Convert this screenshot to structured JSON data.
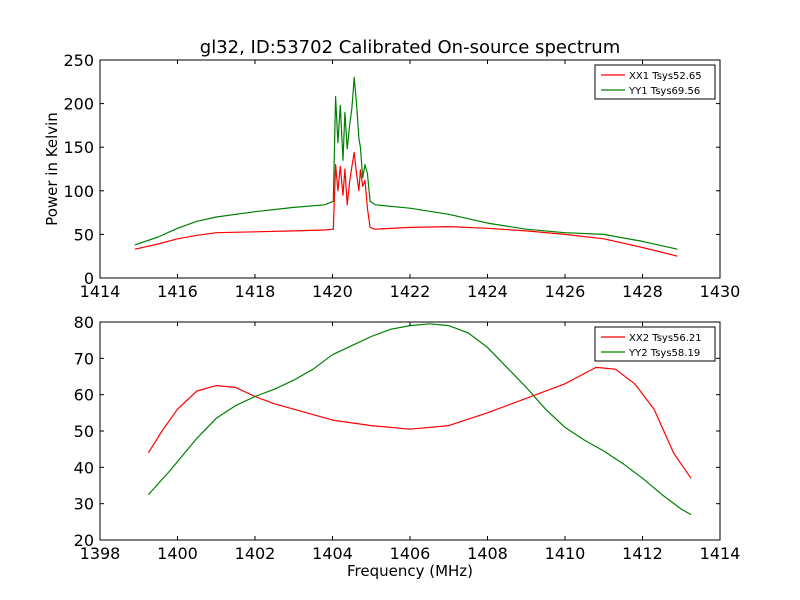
{
  "chart_data": [
    {
      "type": "line",
      "title": "gl32, ID:53702 Calibrated On-source spectrum",
      "xlabel": "",
      "ylabel": "Power in Kelvin",
      "xlim": [
        1414,
        1430
      ],
      "ylim": [
        0,
        250
      ],
      "xticks": [
        1414,
        1416,
        1418,
        1420,
        1422,
        1424,
        1426,
        1428,
        1430
      ],
      "yticks": [
        0,
        50,
        100,
        150,
        200,
        250
      ],
      "grid": false,
      "legend_position": "top-right",
      "series": [
        {
          "name": "XX1 Tsys52.65",
          "color": "#ff0000",
          "points": [
            [
              1414.9,
              33
            ],
            [
              1415.5,
              39
            ],
            [
              1416,
              45
            ],
            [
              1416.5,
              49
            ],
            [
              1417,
              52
            ],
            [
              1418,
              53
            ],
            [
              1419,
              54
            ],
            [
              1419.8,
              55
            ],
            [
              1420.02,
              56
            ],
            [
              1420.08,
              130
            ],
            [
              1420.14,
              100
            ],
            [
              1420.2,
              128
            ],
            [
              1420.27,
              95
            ],
            [
              1420.32,
              125
            ],
            [
              1420.38,
              84
            ],
            [
              1420.44,
              110
            ],
            [
              1420.5,
              128
            ],
            [
              1420.56,
              144
            ],
            [
              1420.62,
              120
            ],
            [
              1420.68,
              100
            ],
            [
              1420.72,
              124
            ],
            [
              1420.78,
              105
            ],
            [
              1420.84,
              112
            ],
            [
              1420.9,
              80
            ],
            [
              1420.97,
              58
            ],
            [
              1421.1,
              56
            ],
            [
              1422,
              58
            ],
            [
              1423,
              59
            ],
            [
              1424,
              57
            ],
            [
              1425,
              54
            ],
            [
              1426,
              50
            ],
            [
              1427,
              45
            ],
            [
              1428,
              35
            ],
            [
              1428.9,
              25
            ]
          ]
        },
        {
          "name": "YY1 Tsys69.56",
          "color": "#008000",
          "points": [
            [
              1414.9,
              38
            ],
            [
              1415.5,
              47
            ],
            [
              1416,
              57
            ],
            [
              1416.5,
              65
            ],
            [
              1417,
              70
            ],
            [
              1418,
              76
            ],
            [
              1419,
              81
            ],
            [
              1419.8,
              84
            ],
            [
              1420.02,
              88
            ],
            [
              1420.08,
              208
            ],
            [
              1420.14,
              155
            ],
            [
              1420.2,
              198
            ],
            [
              1420.27,
              135
            ],
            [
              1420.32,
              190
            ],
            [
              1420.38,
              148
            ],
            [
              1420.44,
              175
            ],
            [
              1420.5,
              195
            ],
            [
              1420.56,
              230
            ],
            [
              1420.62,
              200
            ],
            [
              1420.68,
              160
            ],
            [
              1420.72,
              150
            ],
            [
              1420.78,
              115
            ],
            [
              1420.84,
              130
            ],
            [
              1420.9,
              120
            ],
            [
              1420.97,
              88
            ],
            [
              1421.1,
              84
            ],
            [
              1422,
              80
            ],
            [
              1423,
              73
            ],
            [
              1424,
              63
            ],
            [
              1425,
              56
            ],
            [
              1426,
              52
            ],
            [
              1427,
              50
            ],
            [
              1428,
              42
            ],
            [
              1428.9,
              33
            ]
          ]
        }
      ]
    },
    {
      "type": "line",
      "title": "",
      "xlabel": "Frequency (MHz)",
      "ylabel": "",
      "xlim": [
        1398,
        1414
      ],
      "ylim": [
        20,
        80
      ],
      "xticks": [
        1398,
        1400,
        1402,
        1404,
        1406,
        1408,
        1410,
        1412,
        1414
      ],
      "yticks": [
        20,
        30,
        40,
        50,
        60,
        70,
        80
      ],
      "grid": false,
      "legend_position": "top-right",
      "series": [
        {
          "name": "XX2 Tsys56.21",
          "color": "#ff0000",
          "points": [
            [
              1399.25,
              44
            ],
            [
              1399.6,
              50
            ],
            [
              1400,
              56
            ],
            [
              1400.5,
              61
            ],
            [
              1401,
              62.5
            ],
            [
              1401.5,
              62
            ],
            [
              1402,
              59.5
            ],
            [
              1402.5,
              57.5
            ],
            [
              1403,
              56
            ],
            [
              1404,
              53
            ],
            [
              1405,
              51.5
            ],
            [
              1406,
              50.5
            ],
            [
              1407,
              51.5
            ],
            [
              1408,
              55
            ],
            [
              1409,
              59
            ],
            [
              1410,
              63
            ],
            [
              1410.8,
              67.5
            ],
            [
              1411.3,
              67
            ],
            [
              1411.8,
              63
            ],
            [
              1412.3,
              56
            ],
            [
              1412.8,
              44
            ],
            [
              1413.25,
              37
            ]
          ]
        },
        {
          "name": "YY2 Tsys58.19",
          "color": "#008000",
          "points": [
            [
              1399.25,
              32.5
            ],
            [
              1399.8,
              39
            ],
            [
              1400.5,
              48
            ],
            [
              1401,
              53.5
            ],
            [
              1401.5,
              57
            ],
            [
              1402,
              59.5
            ],
            [
              1402.5,
              61.5
            ],
            [
              1403,
              64
            ],
            [
              1403.5,
              67
            ],
            [
              1404,
              71
            ],
            [
              1404.5,
              73.5
            ],
            [
              1405,
              76
            ],
            [
              1405.5,
              78
            ],
            [
              1406,
              79
            ],
            [
              1406.5,
              79.5
            ],
            [
              1407,
              79
            ],
            [
              1407.5,
              77
            ],
            [
              1408,
              73
            ],
            [
              1408.5,
              67.5
            ],
            [
              1409,
              62
            ],
            [
              1409.5,
              56
            ],
            [
              1410,
              51
            ],
            [
              1410.5,
              47.5
            ],
            [
              1411,
              44.5
            ],
            [
              1411.5,
              41
            ],
            [
              1412,
              37
            ],
            [
              1412.5,
              32.5
            ],
            [
              1413,
              28.5
            ],
            [
              1413.25,
              27
            ]
          ]
        }
      ]
    }
  ]
}
